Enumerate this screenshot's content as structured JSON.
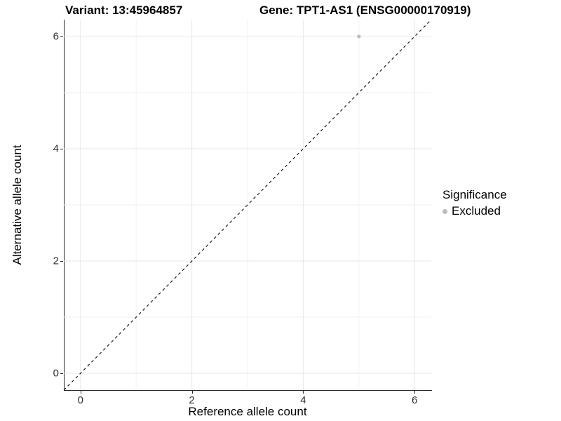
{
  "titles": {
    "left": "Variant: 13:45964857",
    "right": "Gene: TPT1-AS1 (ENSG00000170919)"
  },
  "axes": {
    "x_label": "Reference allele count",
    "y_label": "Alternative allele count"
  },
  "legend": {
    "title": "Significance",
    "items": [
      {
        "label": "Excluded",
        "color": "#bdbdbd"
      }
    ]
  },
  "colors": {
    "background": "#ffffff",
    "grid_major": "#e7e7e7",
    "grid_minor": "#f2f2f2",
    "axis_line": "#2b2b2b",
    "tick_text": "#303030",
    "reference_line": "#1a1a1a",
    "point": "#bdbdbd"
  },
  "chart_data": {
    "type": "scatter",
    "title": "Variant: 13:45964857 | Gene: TPT1-AS1 (ENSG00000170919)",
    "xlabel": "Reference allele count",
    "ylabel": "Alternative allele count",
    "xlim": [
      -0.3,
      6.3
    ],
    "ylim": [
      -0.3,
      6.3
    ],
    "x_ticks": [
      0,
      2,
      4,
      6
    ],
    "y_ticks": [
      0,
      2,
      4,
      6
    ],
    "x_minor_ticks": [
      1,
      3,
      5
    ],
    "y_minor_ticks": [
      1,
      3,
      5
    ],
    "grid": true,
    "legend_position": "right",
    "reference_line": {
      "kind": "identity",
      "style": "dashed",
      "from": [
        -0.3,
        -0.3
      ],
      "to": [
        6.3,
        6.3
      ]
    },
    "series": [
      {
        "name": "Excluded",
        "color": "#bdbdbd",
        "points": [
          {
            "x": 5,
            "y": 6
          }
        ]
      }
    ]
  }
}
